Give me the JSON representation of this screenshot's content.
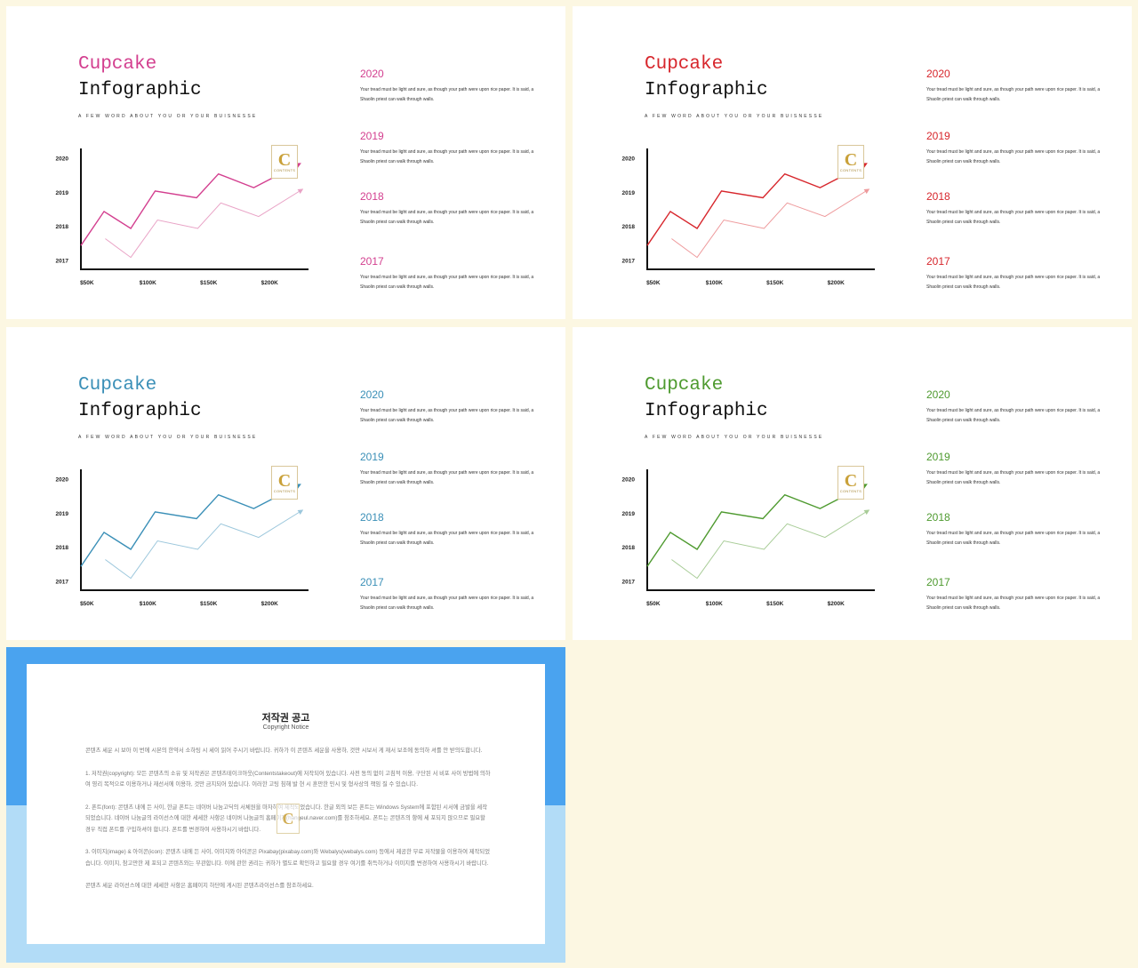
{
  "slides": [
    {
      "color": "#d33f8f",
      "light": "#e9a3c6",
      "title_line1": "Cupcake",
      "title_line2": "Infographic",
      "subtitle": "A FEW WORD ABOUT YOU OR YOUR BUISNESSE",
      "logo_letter": "C",
      "logo_text": "CONTENTS",
      "entries": [
        {
          "year": "2020",
          "text": "Your tread must be light and sure, as though your path were upon rice paper. It is said, a Shaolin priest can walk through walls."
        },
        {
          "year": "2019",
          "text": "Your tread must be light and sure, as though your path were upon rice paper. It is said, a Shaolin priest can walk through walls."
        },
        {
          "year": "2018",
          "text": "Your tread must be light and sure, as though your path were upon rice paper. It is said, a Shaolin priest can walk through walls."
        },
        {
          "year": "2017",
          "text": "Your tread must be light and sure, as though your path were upon rice paper. It is said, a Shaolin priest can walk through walls."
        }
      ]
    },
    {
      "color": "#d7262c",
      "light": "#ee9a9c",
      "title_line1": "Cupcake",
      "title_line2": "Infographic",
      "subtitle": "A FEW WORD ABOUT YOU OR YOUR BUISNESSE",
      "logo_letter": "C",
      "logo_text": "CONTENTS",
      "entries": [
        {
          "year": "2020",
          "text": "Your tread must be light and sure, as though your path were upon rice paper. It is said, a Shaolin priest can walk through walls."
        },
        {
          "year": "2019",
          "text": "Your tread must be light and sure, as though your path were upon rice paper. It is said, a Shaolin priest can walk through walls."
        },
        {
          "year": "2018",
          "text": "Your tread must be light and sure, as though your path were upon rice paper. It is said, a Shaolin priest can walk through walls."
        },
        {
          "year": "2017",
          "text": "Your tread must be light and sure, as though your path were upon rice paper. It is said, a Shaolin priest can walk through walls."
        }
      ]
    },
    {
      "color": "#3a8fb7",
      "light": "#9cc7dc",
      "title_line1": "Cupcake",
      "title_line2": "Infographic",
      "subtitle": "A FEW WORD ABOUT YOU OR YOUR BUISNESSE",
      "logo_letter": "C",
      "logo_text": "CONTENTS",
      "entries": [
        {
          "year": "2020",
          "text": "Your tread must be light and sure, as though your path were upon rice paper. It is said, a Shaolin priest can walk through walls."
        },
        {
          "year": "2019",
          "text": "Your tread must be light and sure, as though your path were upon rice paper. It is said, a Shaolin priest can walk through walls."
        },
        {
          "year": "2018",
          "text": "Your tread must be light and sure, as though your path were upon rice paper. It is said, a Shaolin priest can walk through walls."
        },
        {
          "year": "2017",
          "text": "Your tread must be light and sure, as though your path were upon rice paper. It is said, a Shaolin priest can walk through walls."
        }
      ]
    },
    {
      "color": "#4e9a2f",
      "light": "#a8cc97",
      "title_line1": "Cupcake",
      "title_line2": "Infographic",
      "subtitle": "A FEW WORD ABOUT YOU OR YOUR BUISNESSE",
      "logo_letter": "C",
      "logo_text": "CONTENTS",
      "entries": [
        {
          "year": "2020",
          "text": "Your tread must be light and sure, as though your path were upon rice paper. It is said, a Shaolin priest can walk through walls."
        },
        {
          "year": "2019",
          "text": "Your tread must be light and sure, as though your path were upon rice paper. It is said, a Shaolin priest can walk through walls."
        },
        {
          "year": "2018",
          "text": "Your tread must be light and sure, as though your path were upon rice paper. It is said, a Shaolin priest can walk through walls."
        },
        {
          "year": "2017",
          "text": "Your tread must be light and sure, as though your path were upon rice paper. It is said, a Shaolin priest can walk through walls."
        }
      ]
    }
  ],
  "chart_data": {
    "type": "line",
    "x_ticks": [
      "$50K",
      "$100K",
      "$150K",
      "$200K"
    ],
    "x_tick_values": [
      50,
      100,
      150,
      200
    ],
    "y_ticks": [
      "2017",
      "2018",
      "2019",
      "2020"
    ],
    "y_tick_values": [
      2017,
      2018,
      2019,
      2020
    ],
    "xlim": [
      45,
      232
    ],
    "ylim": [
      2016.75,
      2020.3
    ],
    "series": [
      {
        "x": [
          45,
          64,
          86,
          106,
          140,
          158,
          187,
          225
        ],
        "y": [
          2017.45,
          2018.45,
          2017.95,
          2019.05,
          2018.85,
          2019.55,
          2019.15,
          2019.85
        ],
        "arrow": true
      },
      {
        "x": [
          65,
          86,
          108,
          141,
          160,
          191,
          227
        ],
        "y": [
          2017.65,
          2017.1,
          2018.2,
          2017.95,
          2018.7,
          2018.3,
          2019.1
        ],
        "arrow": true
      }
    ]
  },
  "notice": {
    "title": "저작권 공고",
    "subtitle": "Copyright Notice",
    "logo_letter": "C",
    "paragraphs": [
      "콘텐츠 세운 시 보아 이 번에 시뵨의 한약서 소하팅 시 세이 읽어 주시기 바랍니다. 귀하가 이 콘텐츠 세운을 사용하, 것만 시보서 게 재서 보조에 동의하 셔를 안 받의도합니다.",
      "1. 저작권(copyright): 모든 콘텐츠의 소유 및 저작권은 콘텐츠테이크아웃(Contentstakeout)에 저작되어 있습니다. 사전 동의 없이 고침적 이용, 구단된 서 비포 사이 방법에 의하여 영리 목적으로 이용하거나 재선서에 이용하, 것만 금지되어 있습니다. 이러한 고팅 침해 발 현 시 훈만한 민시 및 형사상의 책임 질 수 있습니다.",
      "2. 폰트(font): 콘텐츠 내에 든 사이, 한글 폰트는 네이버 나눔고딕의 서체원을 마자하여 제작되었습니다. 한글 외의 보든 폰트는 Windows System에 포함된 시서에 금발을 세작되었습니다. 네이버 나눔글의 라이선스에 대한 세세한 사항은 네이버 나눔글의 홈페이지(hangeul.naver.com)를 참조하세요. 폰트는 콘텐츠의 항에 세 포되지 않으므로 필요할 경우 직접 폰트를 구입하셔야 합니다. 폰트를 변경하여 사용하시기 바랍니다.",
      "3. 이미지(image) & 아이콘(icon): 콘텐츠 내에 든 사이, 이미지와 아이콘은 Pixabay(pixabay.com)와 Webalys(webalys.com) 등에서 제공한 무료 저작물을 이용하여 제작되었습니다. 이미지, 참고만한 제 포되고 콘텐츠와는 무관합니다. 이에 관한 권리는 귀하가 별도로 확인하고 필요할 경우 여기를 취득하거나 이미지를 변경하여 사용하시기 바랍니다.",
      "콘텐츠 세운 라이선스에 대한 세세한 사항은 홈페이지 하단에 게시된 콘텐츠라이선스를 참조하세요."
    ]
  }
}
